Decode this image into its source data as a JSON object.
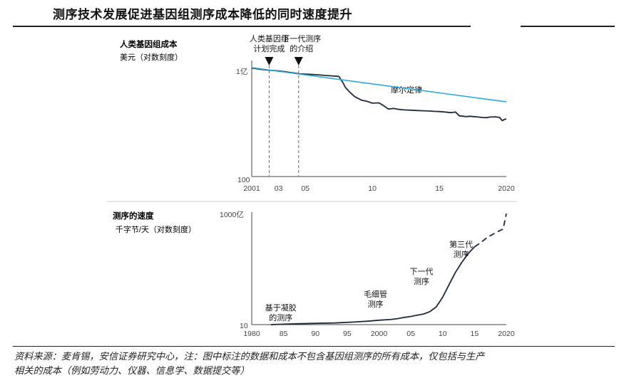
{
  "page": {
    "title": "测序技术发展促进基因组测序成本降低的同时速度提升",
    "source_line1": "资料来源：麦肯锡，安信证券研究中心，注：图中标注的数据和成本不包含基因组测序的所有成本，仅包括与生产",
    "source_line2": "相关的成本（例如劳动力、仪器、信息学、数据提交等）"
  },
  "colors": {
    "cost_line": "#1f2a3a",
    "moore_line": "#29a8e0",
    "axis": "#444444",
    "dashed_marker": "#666666"
  },
  "chart_data": [
    {
      "type": "line",
      "title": "人类基因组成本",
      "ylabel": "美元（对数刻度）",
      "yscale": "log",
      "ylim": [
        100,
        100000000
      ],
      "xlim": [
        2001,
        2020
      ],
      "ytick_labels": [
        "1亿",
        "100"
      ],
      "xtick_labels": [
        "2001",
        "03",
        "05",
        "10",
        "15",
        "2020"
      ],
      "xtick_values": [
        2001,
        2003,
        2005,
        2010,
        2015,
        2020
      ],
      "annotations": [
        {
          "x": 2002.3,
          "label_lines": [
            "人类基因组",
            "计划完成"
          ]
        },
        {
          "x": 2004.5,
          "label_lines": [
            "下一代测序",
            "的介绍"
          ]
        }
      ],
      "series": [
        {
          "name": "cost",
          "x": [
            2001,
            2001.7,
            2002.3,
            2002.8,
            2003.3,
            2003.8,
            2004.2,
            2004.6,
            2005.2,
            2006,
            2006.5,
            2007,
            2007.5,
            2007.8,
            2008,
            2008.3,
            2008.7,
            2009.2,
            2009.6,
            2010,
            2010.5,
            2010.9,
            2011.2,
            2011.6,
            2012,
            2012.4,
            2012.9,
            2013.4,
            2013.8,
            2014.2,
            2014.6,
            2015,
            2015.4,
            2015.9,
            2016.2,
            2016.5,
            2016.8,
            2017,
            2017.3,
            2017.6,
            2017.9,
            2018.2,
            2018.5,
            2018.8,
            2019.2,
            2019.5,
            2019.7,
            2019.85,
            2020
          ],
          "y": [
            95000000,
            80000000,
            72000000,
            68000000,
            62000000,
            55000000,
            50000000,
            45000000,
            43000000,
            40000000,
            37000000,
            35000000,
            33000000,
            15000000,
            8000000,
            4500000,
            2500000,
            1600000,
            1400000,
            1100000,
            1150000,
            750000,
            520000,
            560000,
            500000,
            470000,
            450000,
            430000,
            420000,
            410000,
            390000,
            380000,
            360000,
            330000,
            360000,
            220000,
            210000,
            200000,
            210000,
            200000,
            190000,
            180000,
            175000,
            190000,
            195000,
            180000,
            120000,
            140000,
            150000
          ]
        },
        {
          "name": "摩尔定律",
          "x": [
            2001,
            2020
          ],
          "y": [
            100000000,
            1300000
          ]
        }
      ]
    },
    {
      "type": "line",
      "title": "测序的速度",
      "ylabel": "千字节/天（对数刻度）",
      "yscale": "log",
      "ylim": [
        10,
        100000000000
      ],
      "xlim": [
        1980,
        2020
      ],
      "ytick_labels": [
        "1000亿",
        "10"
      ],
      "xtick_labels": [
        "1980",
        "85",
        "90",
        "95",
        "2000",
        "05",
        "10",
        "15",
        "2020"
      ],
      "xtick_values": [
        1980,
        1985,
        1990,
        1995,
        2000,
        2005,
        2010,
        2015,
        2020
      ],
      "annotations": [
        {
          "x": 1983,
          "label_lines": [
            "基于凝胶",
            "的测序"
          ]
        },
        {
          "x": 1999,
          "label_lines": [
            "毛细管",
            "测序"
          ]
        },
        {
          "x": 2006,
          "label_lines": [
            "下一代",
            "测序"
          ]
        },
        {
          "x": 2012,
          "label_lines": [
            "第三代",
            "测序"
          ]
        }
      ],
      "series": [
        {
          "name": "speed",
          "x": [
            1983,
            1985,
            1987,
            1990,
            1993,
            1996,
            1998,
            2000,
            2002,
            2003,
            2004,
            2005,
            2006,
            2007,
            2008,
            2009,
            2010,
            2011,
            2012,
            2013,
            2014,
            2015
          ],
          "y": [
            10,
            11,
            12,
            13,
            14,
            17,
            20,
            25,
            30,
            35,
            45,
            55,
            70,
            90,
            150,
            400,
            3000,
            40000,
            500000,
            4000000,
            25000000,
            100000000
          ]
        },
        {
          "name": "speed-projected",
          "dashed": true,
          "x": [
            2015,
            2016,
            2017,
            2018,
            2019,
            2019.5,
            2020
          ],
          "y": [
            100000000,
            250000000,
            700000000,
            1500000000,
            3000000000,
            4000000000,
            100000000000
          ]
        }
      ]
    }
  ]
}
